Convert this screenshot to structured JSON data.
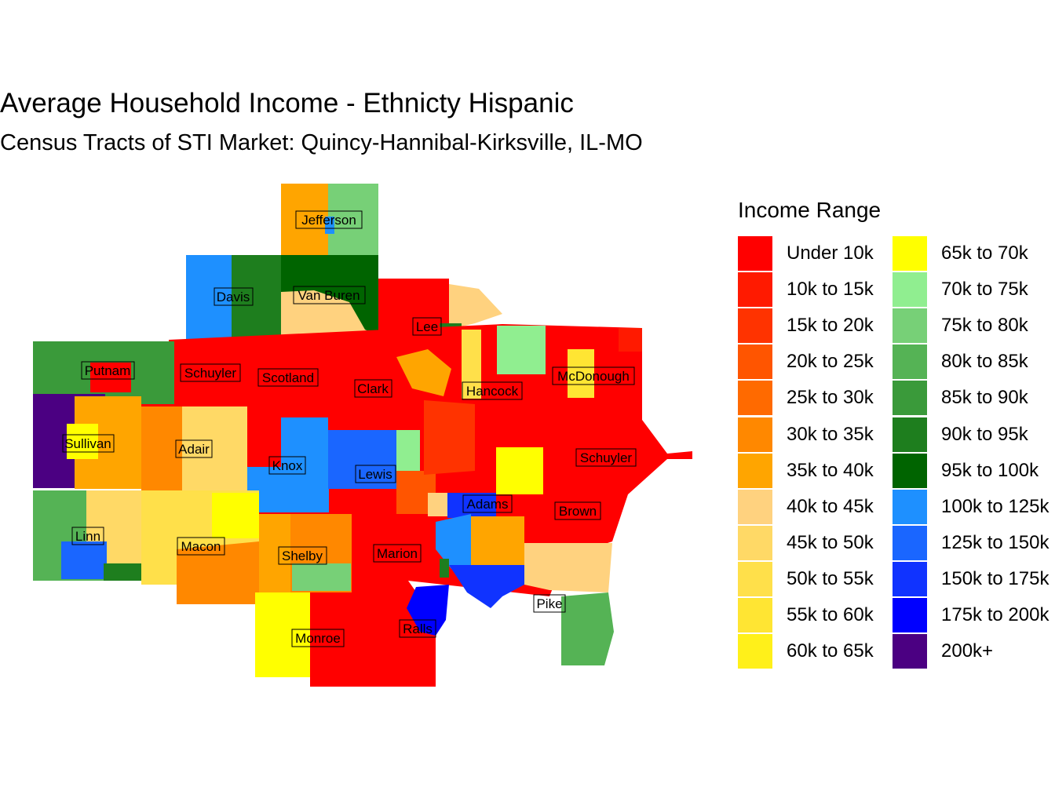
{
  "title": "Average Household Income - Ethnicty Hispanic",
  "subtitle": "Census Tracts of STI Market: Quincy-Hannibal-Kirksville, IL-MO",
  "legend": {
    "title": "Income Range",
    "items": [
      {
        "label": "Under 10k",
        "color": "#FF0000"
      },
      {
        "label": "10k to 15k",
        "color": "#FF1A00"
      },
      {
        "label": "15k to 20k",
        "color": "#FF3300"
      },
      {
        "label": "20k to 25k",
        "color": "#FF5500"
      },
      {
        "label": "25k to 30k",
        "color": "#FF6A00"
      },
      {
        "label": "30k to 35k",
        "color": "#FF8800"
      },
      {
        "label": "35k to 40k",
        "color": "#FFA500"
      },
      {
        "label": "40k to 45k",
        "color": "#FFD27F"
      },
      {
        "label": "45k to 50k",
        "color": "#FFD966"
      },
      {
        "label": "50k to 55k",
        "color": "#FFE04A"
      },
      {
        "label": "55k to 60k",
        "color": "#FFE533"
      },
      {
        "label": "60k to 65k",
        "color": "#FFF01A"
      },
      {
        "label": "65k to 70k",
        "color": "#FFFF00"
      },
      {
        "label": "70k to 75k",
        "color": "#90EE90"
      },
      {
        "label": "75k to 80k",
        "color": "#77D077"
      },
      {
        "label": "80k to 85k",
        "color": "#55B355"
      },
      {
        "label": "85k to 90k",
        "color": "#3A9A3A"
      },
      {
        "label": "90k to 95k",
        "color": "#1E7E1E"
      },
      {
        "label": "95k to 100k",
        "color": "#006400"
      },
      {
        "label": "100k to 125k",
        "color": "#1E90FF"
      },
      {
        "label": "125k to 150k",
        "color": "#1A66FF"
      },
      {
        "label": "150k to 175k",
        "color": "#1033FF"
      },
      {
        "label": "175k to 200k",
        "color": "#0000FF"
      },
      {
        "label": "200k+",
        "color": "#4B0082"
      }
    ]
  },
  "counties": [
    "Jefferson",
    "Davis",
    "Van Buren",
    "Lee",
    "Putnam",
    "Schuyler",
    "Scotland",
    "Clark",
    "Hancock",
    "McDonough",
    "Sullivan",
    "Adair",
    "Knox",
    "Lewis",
    "Schuyler",
    "Adams",
    "Brown",
    "Linn",
    "Macon",
    "Shelby",
    "Marion",
    "Pike",
    "Ralls",
    "Monroe"
  ]
}
